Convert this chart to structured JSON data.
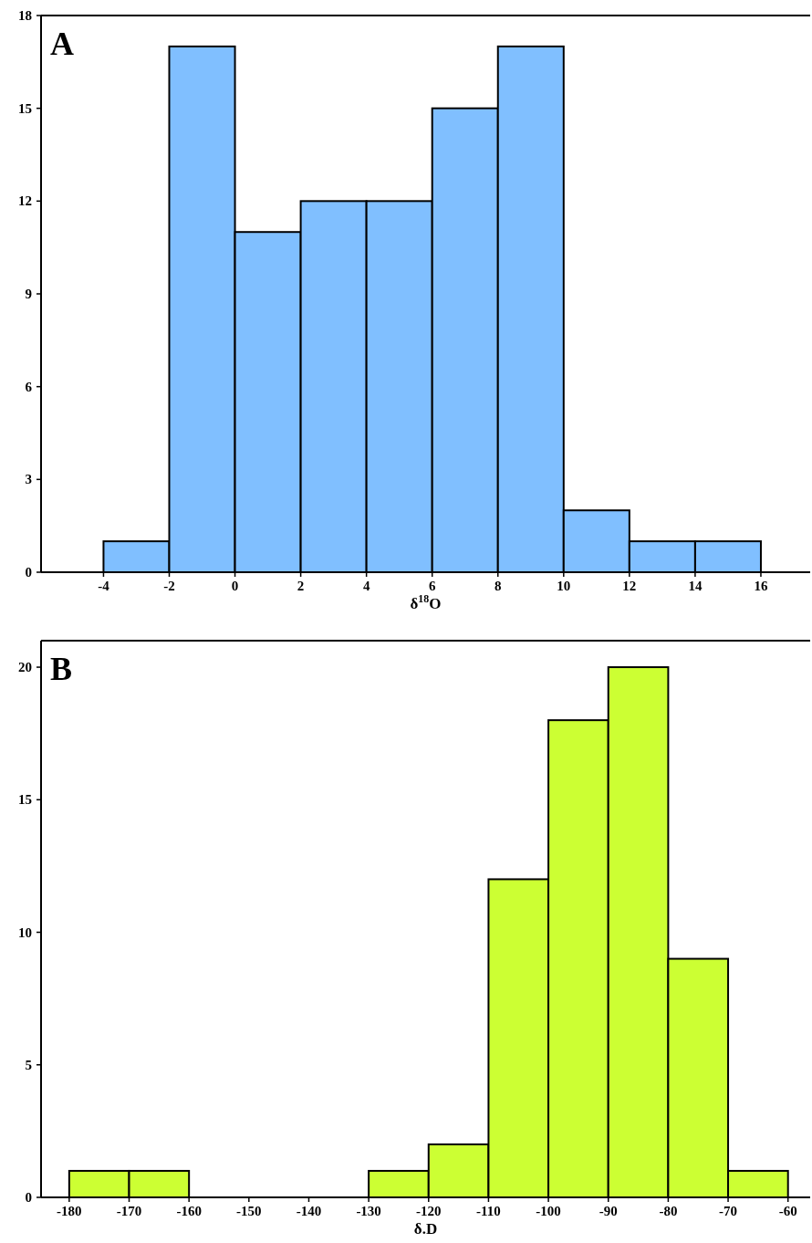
{
  "chart_data": [
    {
      "type": "histogram",
      "xlabel": "δ$^{18}$O",
      "annotations": [
        "A"
      ],
      "bins": [
        -4,
        -2,
        0,
        2,
        4,
        6,
        8,
        10,
        12,
        14,
        16
      ],
      "values": [
        1,
        17,
        11,
        12,
        12,
        15,
        17,
        2,
        1,
        1
      ],
      "color": "#80bfff",
      "xlim": [
        -5.9,
        17.5
      ],
      "xticks": [
        -4,
        -2,
        0,
        2,
        4,
        6,
        8,
        10,
        12,
        14,
        16
      ],
      "ylim": [
        0,
        18
      ],
      "yticks": [
        0,
        3,
        6,
        9,
        12,
        15,
        18
      ]
    },
    {
      "type": "histogram",
      "xlabel": "δ.D",
      "annotations": [
        "B"
      ],
      "bins": [
        -180,
        -170,
        -160,
        -150,
        -140,
        -130,
        -120,
        -110,
        -100,
        -90,
        -80,
        -70,
        -60
      ],
      "values": [
        1,
        1,
        0,
        0,
        0,
        1,
        2,
        12,
        18,
        20,
        9,
        1
      ],
      "color": "#ccff33",
      "xlim": [
        -184.7,
        -56.3
      ],
      "xticks": [
        -180,
        -170,
        -160,
        -150,
        -140,
        -130,
        -120,
        -110,
        -100,
        -90,
        -80,
        -70,
        -60
      ],
      "ylim": [
        0,
        21
      ],
      "yticks": [
        0,
        5,
        10,
        15,
        20
      ]
    }
  ]
}
